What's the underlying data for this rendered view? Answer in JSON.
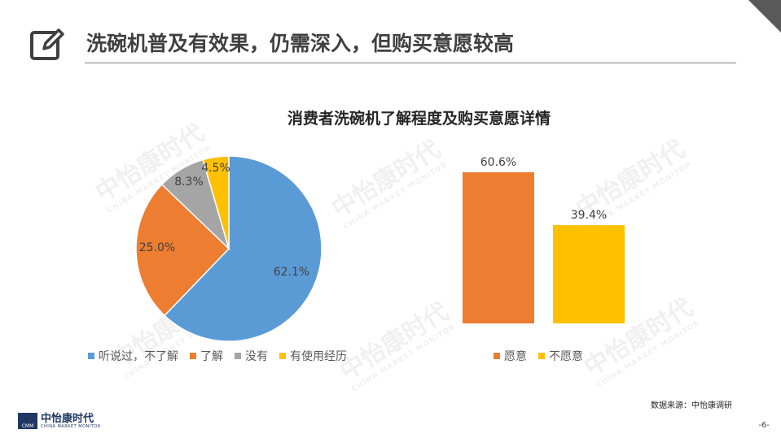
{
  "header": {
    "title": "洗碗机普及有效果，仍需深入，但购买意愿较高",
    "icon": "edit-icon"
  },
  "chart_title": "消费者洗碗机了解程度及购买意愿详情",
  "watermark": {
    "text": "中怡康时代",
    "sub": "CHINA MARKET MONITOR"
  },
  "chart_data": [
    {
      "type": "pie",
      "labels": [
        "听说过，不了解",
        "了解",
        "没有",
        "有使用经历"
      ],
      "values": [
        62.1,
        25.0,
        8.3,
        4.5
      ],
      "display_labels": [
        "62.1%",
        "25.0%",
        "8.3%",
        "4.5%"
      ],
      "colors": [
        "#5b9bd5",
        "#ed7d31",
        "#a5a5a5",
        "#ffc000"
      ],
      "legend": "bottom"
    },
    {
      "type": "bar",
      "categories": [
        "愿意",
        "不愿意"
      ],
      "values": [
        60.6,
        39.4
      ],
      "display_labels": [
        "60.6%",
        "39.4%"
      ],
      "colors": [
        "#ed7d31",
        "#ffc000"
      ],
      "legend": "bottom",
      "ylim": [
        0,
        60.6
      ]
    }
  ],
  "footer": {
    "source": "数据来源：中怡康调研",
    "page": "-6-",
    "logo_text": "中怡康时代",
    "logo_sub": "CHINA MARKET MONITOR",
    "logo_mark": "CMM"
  }
}
